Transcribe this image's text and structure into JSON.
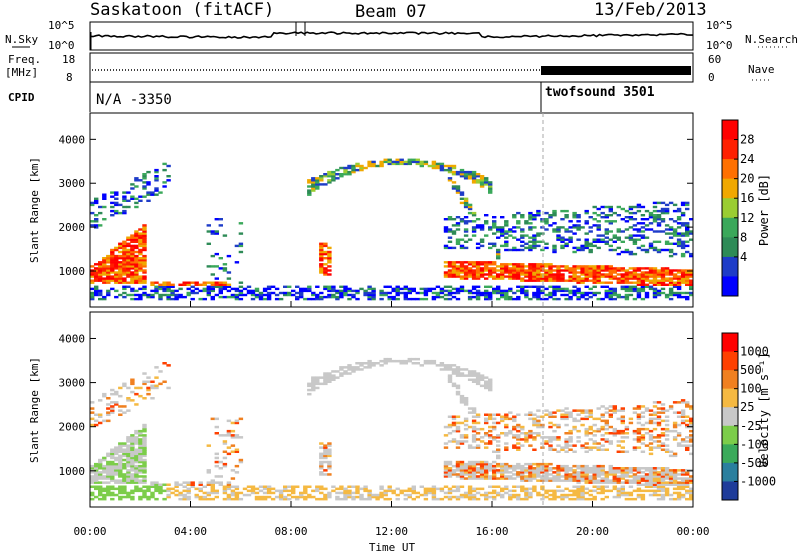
{
  "header": {
    "station": "Saskatoon (fitACF)",
    "beam": "Beam 07",
    "date": "13/Feb/2013"
  },
  "top_panels": {
    "nsky_label": "N.Sky",
    "nsky_ticks": [
      "10^5",
      "10^0"
    ],
    "nsearch_label": "N.Search",
    "freq_label_1": "Freq.",
    "freq_label_2": "[MHz]",
    "freq_ticks": [
      "18",
      "8"
    ],
    "nave_label": "Nave",
    "nave_ticks": [
      "60",
      "0"
    ],
    "cpid_label": "CPID",
    "cpid_1": "N/A -3350",
    "cpid_2": "twofsound 3501"
  },
  "chart_data": [
    {
      "type": "heatmap",
      "name": "Power",
      "ylabel": "Slant Range [km]",
      "ylim": [
        180,
        4600
      ],
      "yticks": [
        1000,
        2000,
        3000,
        4000
      ],
      "xlim": [
        0,
        24
      ],
      "colorbar_label": "Power [dB]",
      "colorbar_ticks": [
        "28",
        "24",
        "20",
        "16",
        "12",
        "8",
        "4"
      ],
      "colors": [
        "#0000ff",
        "#1e3cc8",
        "#2e8b57",
        "#3aa85a",
        "#9acd32",
        "#f0a800",
        "#ff7000",
        "#ff2000",
        "#ff0000"
      ]
    },
    {
      "type": "heatmap",
      "name": "Velocity",
      "ylabel": "Slant Range [km]",
      "ylim": [
        180,
        4600
      ],
      "yticks": [
        1000,
        2000,
        3000,
        4000
      ],
      "xlim": [
        0,
        24
      ],
      "xlabel": "Time UT",
      "xticks": [
        "00:00",
        "04:00",
        "08:00",
        "12:00",
        "16:00",
        "20:00",
        "00:00"
      ],
      "colorbar_label": "Velocity [m s⁻¹]",
      "colorbar_ticks": [
        "1000",
        "500",
        "100",
        "25",
        "-25",
        "-100",
        "-500",
        "-1000"
      ],
      "colors": [
        "#1f3c9a",
        "#2a7f9e",
        "#3aaa5a",
        "#7ccd4a",
        "#c8c8c8",
        "#f5b942",
        "#f08020",
        "#ff4000",
        "#ff0000"
      ]
    }
  ]
}
